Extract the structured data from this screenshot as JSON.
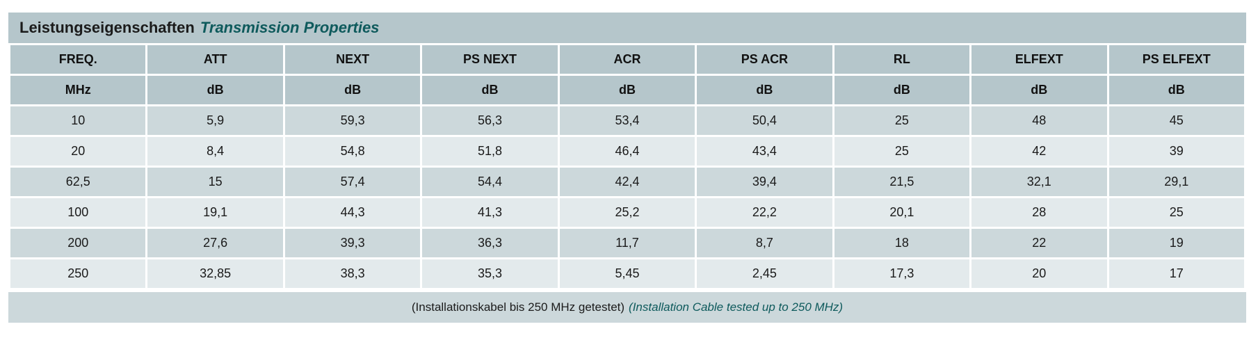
{
  "title": {
    "de": "Leistungseigenschaften",
    "en": "Transmission Properties"
  },
  "columns": [
    "FREQ.",
    "ATT",
    "NEXT",
    "PS NEXT",
    "ACR",
    "PS ACR",
    "RL",
    "ELFEXT",
    "PS ELFEXT"
  ],
  "units": [
    "MHz",
    "dB",
    "dB",
    "dB",
    "dB",
    "dB",
    "dB",
    "dB",
    "dB"
  ],
  "rows": [
    [
      "10",
      "5,9",
      "59,3",
      "56,3",
      "53,4",
      "50,4",
      "25",
      "48",
      "45"
    ],
    [
      "20",
      "8,4",
      "54,8",
      "51,8",
      "46,4",
      "43,4",
      "25",
      "42",
      "39"
    ],
    [
      "62,5",
      "15",
      "57,4",
      "54,4",
      "42,4",
      "39,4",
      "21,5",
      "32,1",
      "29,1"
    ],
    [
      "100",
      "19,1",
      "44,3",
      "41,3",
      "25,2",
      "22,2",
      "20,1",
      "28",
      "25"
    ],
    [
      "200",
      "27,6",
      "39,3",
      "36,3",
      "11,7",
      "8,7",
      "18",
      "22",
      "19"
    ],
    [
      "250",
      "32,85",
      "38,3",
      "35,3",
      "5,45",
      "2,45",
      "17,3",
      "20",
      "17"
    ]
  ],
  "footnote": {
    "de": "(Installationskabel bis 250 MHz getestet)",
    "en": "(Installation Cable tested up to 250 MHz)"
  },
  "colors": {
    "header_bg": "#b5c6cb",
    "row_dark": "#ccd8db",
    "row_light": "#e3eaec",
    "accent_text": "#0e5a5c"
  }
}
